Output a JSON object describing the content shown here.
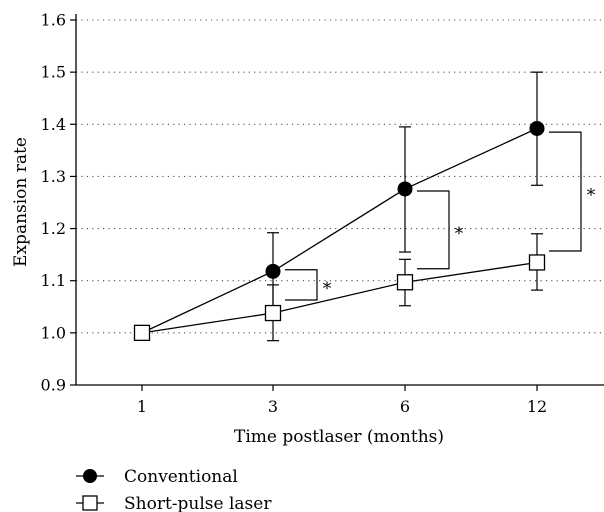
{
  "chart_data": {
    "type": "line",
    "categories": [
      "1",
      "3",
      "6",
      "12"
    ],
    "xlabel": "Time postlaser (months)",
    "ylabel": "Expansion rate",
    "ylim": [
      0.9,
      1.6
    ],
    "yticks": [
      "0.9",
      "1.0",
      "1.1",
      "1.2",
      "1.3",
      "1.4",
      "1.5",
      "1.6"
    ],
    "grid": "horizontal dotted",
    "legend_position": "bottom-left",
    "series": [
      {
        "name": "Conventional",
        "marker": "filled-circle",
        "values": [
          1.0,
          1.118,
          1.276,
          1.392
        ],
        "err_low": [
          1.0,
          1.045,
          1.155,
          1.283
        ],
        "err_high": [
          1.0,
          1.192,
          1.395,
          1.5
        ]
      },
      {
        "name": "Short-pulse laser",
        "marker": "open-square",
        "values": [
          1.0,
          1.038,
          1.097,
          1.135
        ],
        "err_low": [
          1.0,
          0.985,
          1.052,
          1.082
        ],
        "err_high": [
          1.0,
          1.092,
          1.141,
          1.19
        ]
      }
    ],
    "annotations": [
      {
        "text": "*",
        "category_index": 1,
        "y_top": 1.121,
        "y_bottom": 1.063
      },
      {
        "text": "*",
        "category_index": 2,
        "y_top": 1.272,
        "y_bottom": 1.123
      },
      {
        "text": "*",
        "category_index": 3,
        "y_top": 1.385,
        "y_bottom": 1.157
      }
    ]
  }
}
